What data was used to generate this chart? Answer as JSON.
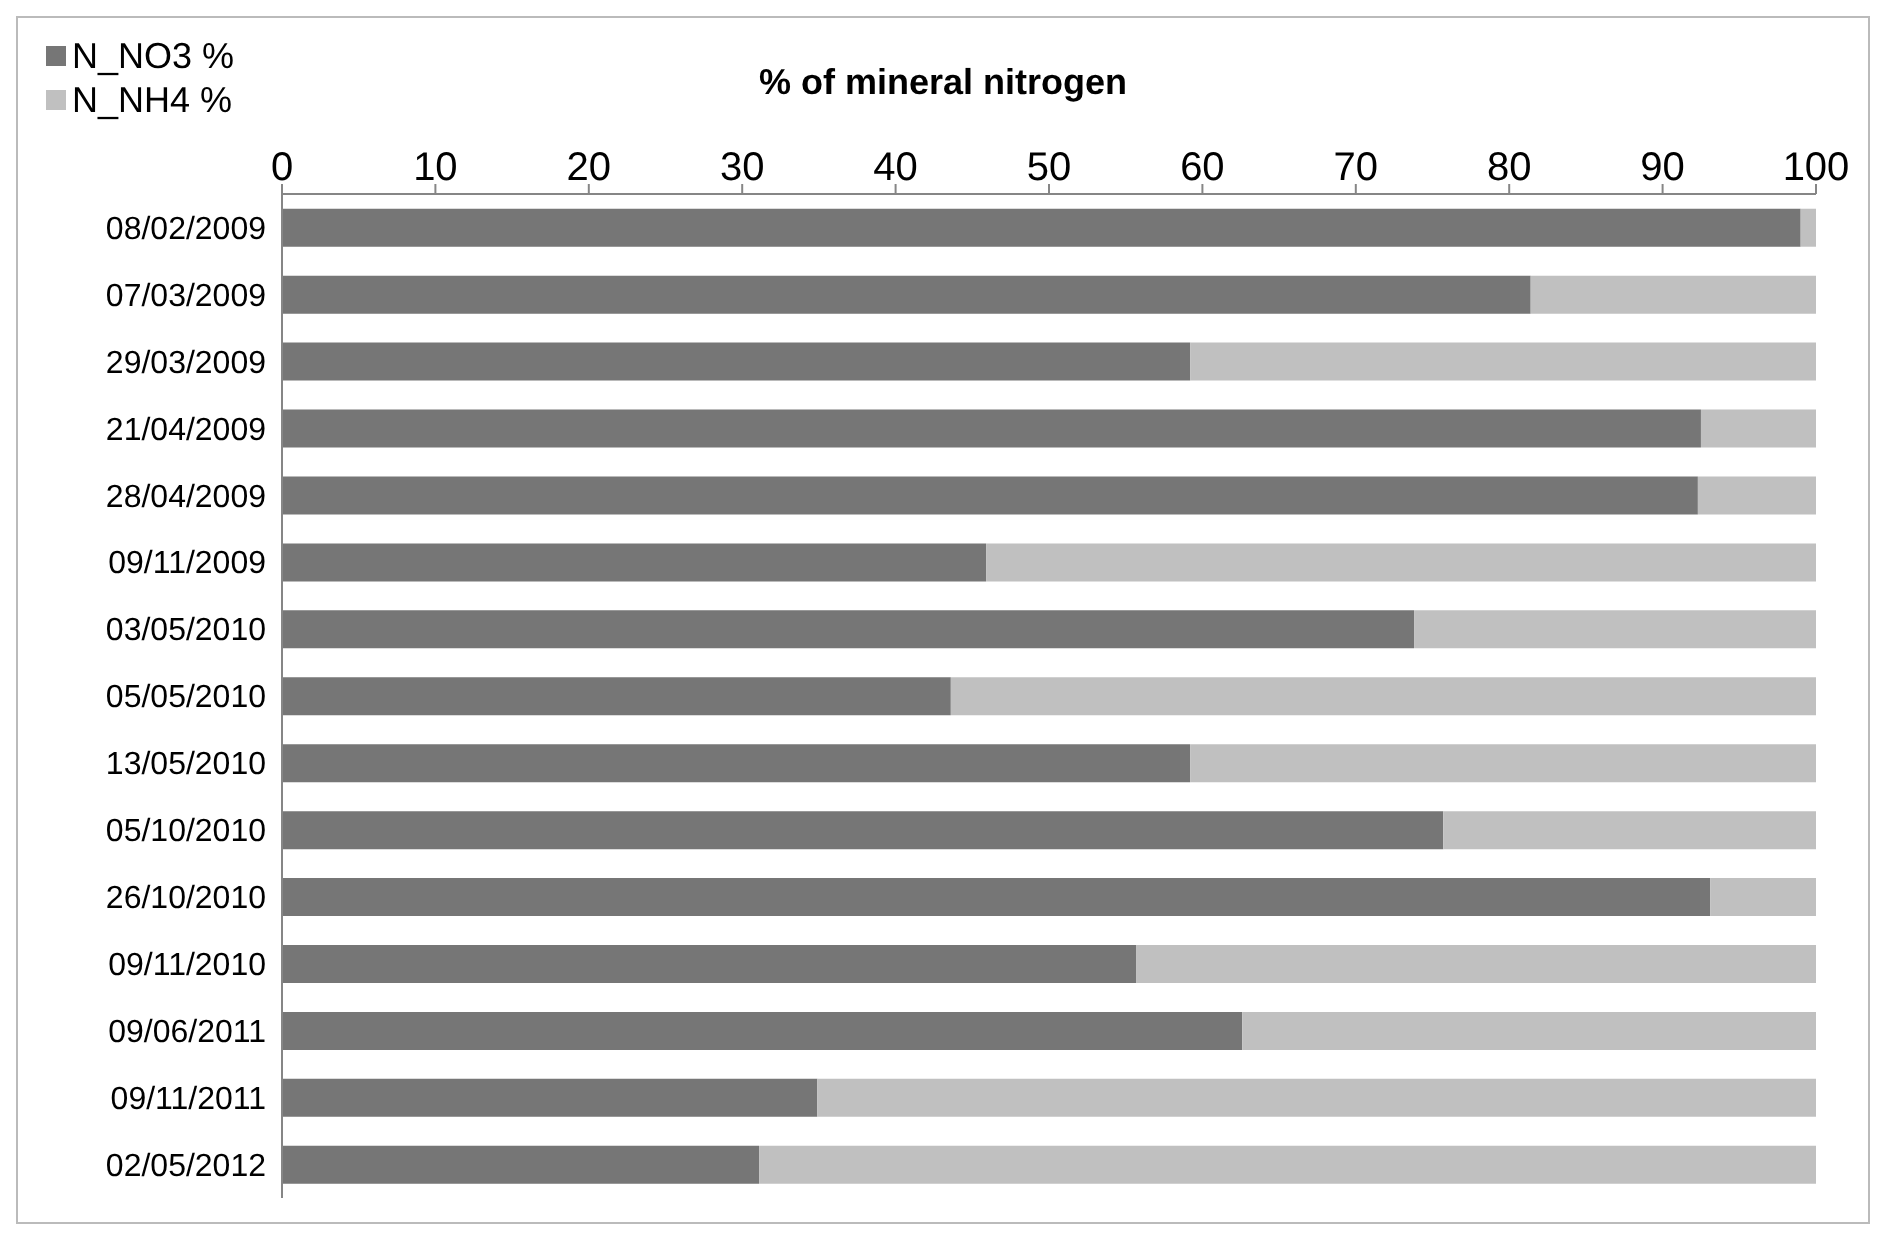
{
  "chart_data": {
    "type": "bar",
    "orientation": "horizontal",
    "stacked": true,
    "title": "% of mineral nitrogen",
    "categories": [
      "08/02/2009",
      "07/03/2009",
      "29/03/2009",
      "21/04/2009",
      "28/04/2009",
      "09/11/2009",
      "03/05/2010",
      "05/05/2010",
      "13/05/2010",
      "05/10/2010",
      "26/10/2010",
      "09/11/2010",
      "09/06/2011",
      "09/11/2011",
      "02/05/2012"
    ],
    "series": [
      {
        "name": "N_NO3 %",
        "color": "#767676",
        "values": [
          99.0,
          81.4,
          59.2,
          92.5,
          92.3,
          45.9,
          73.8,
          43.6,
          59.2,
          75.7,
          93.1,
          55.7,
          62.6,
          34.9,
          31.1
        ]
      },
      {
        "name": "N_NH4 %",
        "color": "#c0c0c0",
        "values": [
          1.0,
          18.6,
          40.8,
          7.5,
          7.7,
          54.1,
          26.2,
          56.4,
          40.8,
          24.3,
          6.9,
          44.3,
          37.4,
          65.1,
          68.9
        ]
      }
    ],
    "xlim": [
      0,
      100
    ],
    "xticks": [
      0,
      10,
      20,
      30,
      40,
      50,
      60,
      70,
      80,
      90,
      100
    ],
    "legend": "top left"
  }
}
